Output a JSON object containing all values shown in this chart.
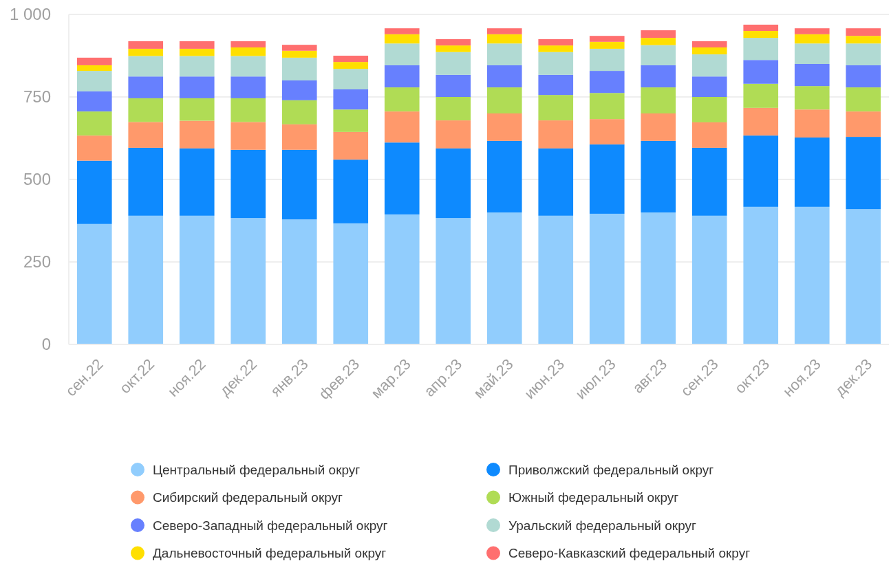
{
  "chart_data": {
    "type": "bar",
    "stacked": true,
    "categories": [
      "сен.22",
      "окт.22",
      "ноя.22",
      "дек.22",
      "янв.23",
      "фев.23",
      "мар.23",
      "апр.23",
      "май.23",
      "июн.23",
      "июл.23",
      "авг.23",
      "сен.23",
      "окт.23",
      "ноя.23",
      "дек.23"
    ],
    "series": [
      {
        "name": "Центральный федеральный округ",
        "color": "#91cdfd",
        "values": [
          365,
          390,
          390,
          383,
          379,
          367,
          394,
          383,
          400,
          390,
          396,
          400,
          390,
          417,
          417,
          410
        ]
      },
      {
        "name": "Приволжский федеральный округ",
        "color": "#0e8afe",
        "values": [
          192,
          206,
          204,
          207,
          211,
          193,
          218,
          211,
          217,
          204,
          210,
          217,
          206,
          216,
          210,
          219
        ]
      },
      {
        "name": "Сибирский федеральный округ",
        "color": "#ff996b",
        "values": [
          76,
          78,
          84,
          84,
          77,
          84,
          94,
          85,
          83,
          85,
          77,
          83,
          77,
          84,
          85,
          77
        ]
      },
      {
        "name": "Южный федеральный округ",
        "color": "#b0dc55",
        "values": [
          73,
          72,
          68,
          72,
          73,
          68,
          73,
          71,
          79,
          77,
          79,
          79,
          77,
          73,
          71,
          73
        ]
      },
      {
        "name": "Северо-Западный федеральный округ",
        "color": "#6780fe",
        "values": [
          61,
          66,
          66,
          66,
          60,
          61,
          67,
          67,
          67,
          61,
          67,
          67,
          62,
          72,
          67,
          67
        ]
      },
      {
        "name": "Уральский федеральный округ",
        "color": "#b1dad3",
        "values": [
          62,
          62,
          62,
          62,
          69,
          62,
          66,
          69,
          66,
          69,
          67,
          61,
          67,
          67,
          62,
          66
        ]
      },
      {
        "name": "Дальневосточный федеральный округ",
        "color": "#ffdf00",
        "values": [
          17,
          22,
          22,
          26,
          21,
          21,
          28,
          20,
          28,
          20,
          21,
          22,
          21,
          21,
          28,
          23
        ]
      },
      {
        "name": "Северо-Кавказский федеральный округ",
        "color": "#ff6f6f",
        "values": [
          23,
          23,
          23,
          19,
          18,
          19,
          18,
          19,
          18,
          19,
          18,
          23,
          19,
          19,
          18,
          23
        ]
      }
    ],
    "ylim": [
      0,
      1000
    ],
    "yticks": [
      0,
      250,
      500,
      750,
      {
        "value": 1000,
        "label": "1 000"
      }
    ],
    "grid": "y",
    "legend": "bottom"
  }
}
